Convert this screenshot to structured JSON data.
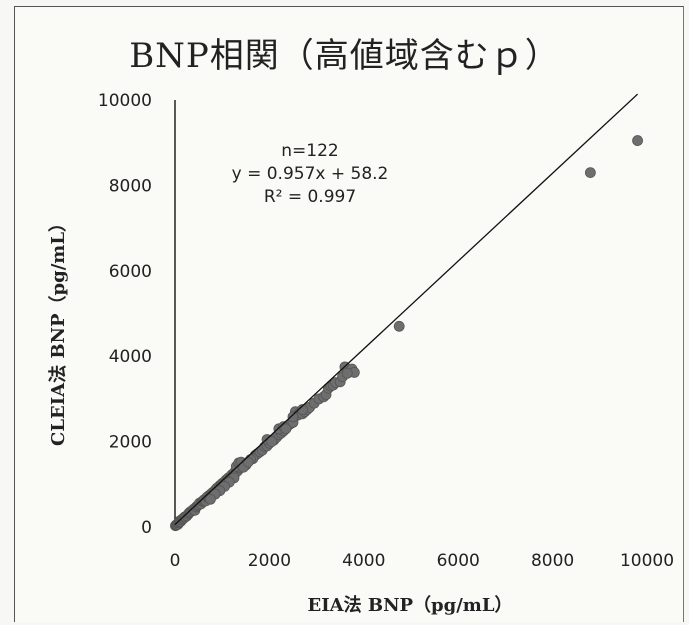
{
  "chart_data": {
    "type": "scatter",
    "title": "BNP相関（高値域含むｐ）",
    "xlabel": "EIA法 BNP（pg/mL）",
    "ylabel": "CLEIA法 BNP（pg/mL）",
    "xlim": [
      0,
      10000
    ],
    "ylim": [
      0,
      10000
    ],
    "xticks": [
      "0",
      "2000",
      "4000",
      "6000",
      "8000",
      "10000"
    ],
    "yticks": [
      "0",
      "2000",
      "4000",
      "6000",
      "8000",
      "10000"
    ],
    "grid": false,
    "annotations": [
      "n=122",
      "y = 0.957x + 58.2",
      "R² = 0.997"
    ],
    "trendline": {
      "slope": 0.957,
      "intercept": 58.2,
      "x_range": [
        0,
        9800
      ]
    },
    "points": [
      [
        10,
        30
      ],
      [
        20,
        40
      ],
      [
        30,
        50
      ],
      [
        40,
        60
      ],
      [
        50,
        70
      ],
      [
        60,
        60
      ],
      [
        70,
        90
      ],
      [
        80,
        100
      ],
      [
        90,
        110
      ],
      [
        100,
        120
      ],
      [
        110,
        150
      ],
      [
        120,
        130
      ],
      [
        140,
        160
      ],
      [
        160,
        190
      ],
      [
        180,
        200
      ],
      [
        200,
        230
      ],
      [
        220,
        240
      ],
      [
        250,
        260
      ],
      [
        280,
        300
      ],
      [
        300,
        330
      ],
      [
        320,
        350
      ],
      [
        350,
        370
      ],
      [
        380,
        400
      ],
      [
        400,
        420
      ],
      [
        420,
        390
      ],
      [
        450,
        470
      ],
      [
        480,
        500
      ],
      [
        500,
        520
      ],
      [
        520,
        560
      ],
      [
        550,
        540
      ],
      [
        580,
        600
      ],
      [
        600,
        620
      ],
      [
        620,
        640
      ],
      [
        650,
        610
      ],
      [
        680,
        700
      ],
      [
        700,
        720
      ],
      [
        720,
        680
      ],
      [
        750,
        760
      ],
      [
        780,
        790
      ],
      [
        800,
        810
      ],
      [
        820,
        780
      ],
      [
        850,
        860
      ],
      [
        880,
        900
      ],
      [
        900,
        920
      ],
      [
        930,
        880
      ],
      [
        950,
        970
      ],
      [
        980,
        990
      ],
      [
        1000,
        1020
      ],
      [
        1030,
        1000
      ],
      [
        1050,
        1060
      ],
      [
        1080,
        1100
      ],
      [
        1100,
        1080
      ],
      [
        1130,
        1150
      ],
      [
        1160,
        1130
      ],
      [
        1200,
        1220
      ],
      [
        1230,
        1200
      ],
      [
        1260,
        1280
      ],
      [
        1300,
        1290
      ],
      [
        1330,
        1320
      ],
      [
        1360,
        1380
      ],
      [
        1400,
        1390
      ],
      [
        1300,
        1420
      ],
      [
        1350,
        1500
      ],
      [
        1400,
        1520
      ],
      [
        1250,
        1150
      ],
      [
        1150,
        1050
      ],
      [
        1050,
        950
      ],
      [
        950,
        850
      ],
      [
        850,
        770
      ],
      [
        750,
        650
      ],
      [
        1700,
        1680
      ],
      [
        1750,
        1720
      ],
      [
        1800,
        1760
      ],
      [
        1850,
        1800
      ],
      [
        1900,
        1880
      ],
      [
        1950,
        1900
      ],
      [
        2000,
        1960
      ],
      [
        2100,
        2040
      ],
      [
        2150,
        2100
      ],
      [
        2200,
        2160
      ],
      [
        2250,
        2200
      ],
      [
        2300,
        2250
      ],
      [
        2400,
        2380
      ],
      [
        2450,
        2420
      ],
      [
        2500,
        2450
      ],
      [
        2550,
        2700
      ],
      [
        2600,
        2620
      ],
      [
        2650,
        2680
      ],
      [
        2700,
        2650
      ],
      [
        2750,
        2700
      ],
      [
        2800,
        2750
      ],
      [
        2850,
        2800
      ],
      [
        2950,
        2900
      ],
      [
        3050,
        3000
      ],
      [
        3150,
        3050
      ],
      [
        3200,
        3100
      ],
      [
        3250,
        3250
      ],
      [
        3300,
        3300
      ],
      [
        3350,
        3320
      ],
      [
        3400,
        3380
      ],
      [
        3600,
        3750
      ],
      [
        3700,
        3650
      ],
      [
        3750,
        3700
      ],
      [
        3800,
        3620
      ],
      [
        2200,
        2300
      ],
      [
        2300,
        2350
      ],
      [
        1950,
        2050
      ],
      [
        2050,
        2000
      ],
      [
        1650,
        1600
      ],
      [
        1600,
        1580
      ],
      [
        1500,
        1450
      ],
      [
        1450,
        1400
      ],
      [
        1550,
        1520
      ],
      [
        2350,
        2300
      ],
      [
        2500,
        2580
      ],
      [
        2700,
        2750
      ],
      [
        3500,
        3400
      ],
      [
        3550,
        3520
      ],
      [
        3650,
        3600
      ],
      [
        4750,
        4700
      ],
      [
        8800,
        8300
      ],
      [
        9800,
        9050
      ]
    ]
  }
}
